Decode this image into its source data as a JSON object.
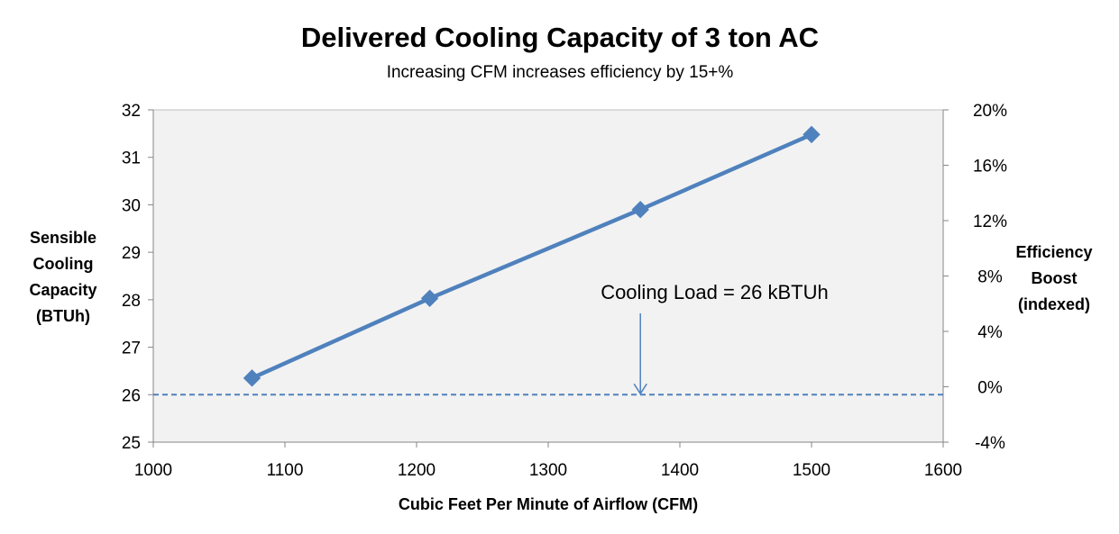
{
  "chart_data": {
    "type": "line",
    "title": "Delivered Cooling Capacity of 3 ton AC",
    "subtitle": "Increasing CFM increases efficiency by 15+%",
    "xlabel": "Cubic Feet Per Minute of Airflow (CFM)",
    "ylabel_lines": [
      "Sensible",
      "Cooling",
      "Capacity",
      "(BTUh)"
    ],
    "y2label_lines": [
      "Efficiency",
      "Boost",
      "(indexed)"
    ],
    "xlim": [
      1000,
      1600
    ],
    "ylim": [
      25,
      32
    ],
    "y2lim": [
      -0.04,
      0.2
    ],
    "x_ticks": [
      1000,
      1100,
      1200,
      1300,
      1400,
      1500,
      1600
    ],
    "y_ticks": [
      25,
      26,
      27,
      28,
      29,
      30,
      31,
      32
    ],
    "y2_ticks": [
      "-4%",
      "0%",
      "4%",
      "8%",
      "12%",
      "16%",
      "20%"
    ],
    "grid": false,
    "plot_background": "#f2f2f2",
    "series": [
      {
        "color": "#4f81bd",
        "marker": "diamond",
        "x": [
          1075,
          1210,
          1370,
          1500
        ],
        "y": [
          26.35,
          28.03,
          29.9,
          31.48
        ]
      }
    ],
    "reference_line": {
      "y": 26,
      "style": "dashed",
      "color": "#4f81bd"
    },
    "annotation": {
      "text": "Cooling Load = 26 kBTUh",
      "arrow_x": 1370,
      "arrow_to_y": 26
    }
  }
}
